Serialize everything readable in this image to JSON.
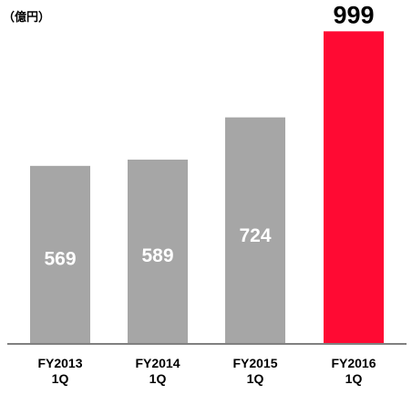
{
  "chart_data": {
    "type": "bar",
    "unit_label": "（億円）",
    "categories": [
      [
        "FY2013",
        "1Q"
      ],
      [
        "FY2014",
        "1Q"
      ],
      [
        "FY2015",
        "1Q"
      ],
      [
        "FY2016",
        "1Q"
      ]
    ],
    "values": [
      569,
      589,
      724,
      999
    ],
    "value_label_position": [
      "inside",
      "inside",
      "inside",
      "above"
    ],
    "bar_colors": [
      "#a6a6a6",
      "#a6a6a6",
      "#a6a6a6",
      "#ff0a33"
    ],
    "ylim": [
      0,
      1000
    ],
    "grid": false,
    "legend": "none",
    "axis_color": "#808080"
  }
}
